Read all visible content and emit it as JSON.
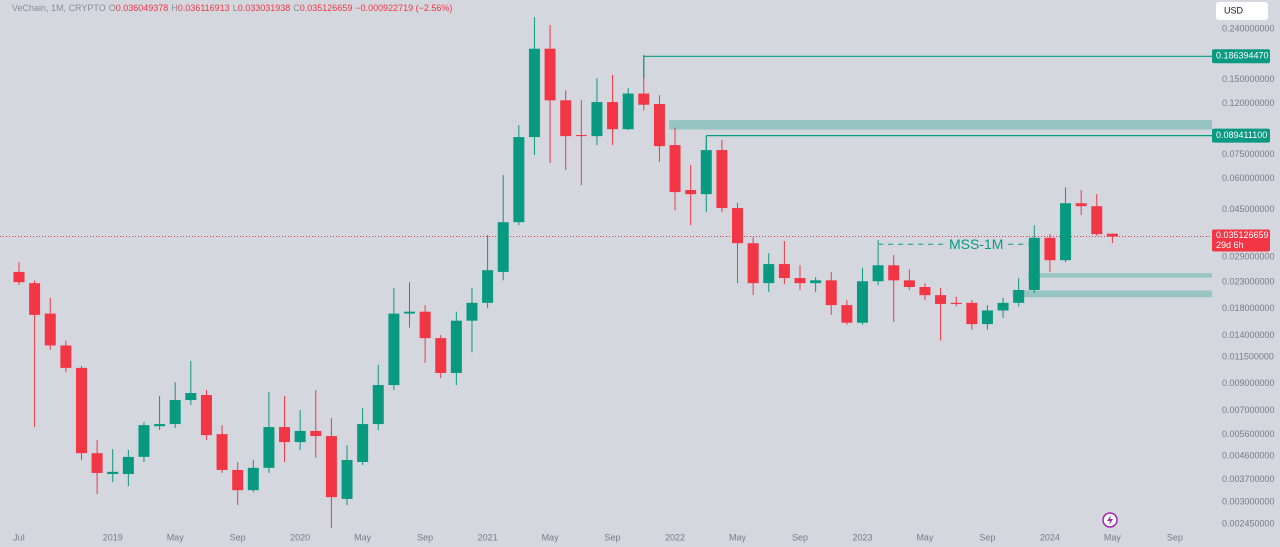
{
  "chart_data": {
    "type": "candlestick",
    "header": {
      "symbol": "VeChain, 1M, CRYPTO",
      "fields": [
        {
          "label": "O",
          "value": "0.036049378"
        },
        {
          "label": "H",
          "value": "0.036116913"
        },
        {
          "label": "L",
          "value": "0.033031938"
        },
        {
          "label": "C",
          "value": "0.035126659"
        }
      ],
      "change": "−0.000922719 (−2.56%)"
    },
    "currency": "USD",
    "up_color": "#089981",
    "down_color": "#f23645",
    "log_scale": true,
    "x": [
      "2018-07",
      "2018-08",
      "2018-09",
      "2018-10",
      "2018-11",
      "2018-12",
      "2019-01",
      "2019-02",
      "2019-03",
      "2019-04",
      "2019-05",
      "2019-06",
      "2019-07",
      "2019-08",
      "2019-09",
      "2019-10",
      "2019-11",
      "2019-12",
      "2020-01",
      "2020-02",
      "2020-03",
      "2020-04",
      "2020-05",
      "2020-06",
      "2020-07",
      "2020-08",
      "2020-09",
      "2020-10",
      "2020-11",
      "2020-12",
      "2021-01",
      "2021-02",
      "2021-03",
      "2021-04",
      "2021-05",
      "2021-06",
      "2021-07",
      "2021-08",
      "2021-09",
      "2021-10",
      "2021-11",
      "2021-12",
      "2022-01",
      "2022-02",
      "2022-03",
      "2022-04",
      "2022-05",
      "2022-06",
      "2022-07",
      "2022-08",
      "2022-09",
      "2022-10",
      "2022-11",
      "2022-12",
      "2023-01",
      "2023-02",
      "2023-03",
      "2023-04",
      "2023-05",
      "2023-06",
      "2023-07",
      "2023-08",
      "2023-09",
      "2023-10",
      "2023-11",
      "2023-12",
      "2024-01",
      "2024-02",
      "2024-03",
      "2024-04",
      "2024-05"
    ],
    "open": [
      0.0253,
      0.0228,
      0.0172,
      0.0128,
      0.0104,
      0.00472,
      0.00389,
      0.00389,
      0.00456,
      0.00606,
      0.00618,
      0.00772,
      0.00809,
      0.00563,
      0.00404,
      0.00335,
      0.00412,
      0.00601,
      0.00523,
      0.0058,
      0.00553,
      0.00309,
      0.00435,
      0.00618,
      0.00887,
      0.0172,
      0.0175,
      0.0137,
      0.00992,
      0.0161,
      0.019,
      0.0253,
      0.0401,
      0.0882,
      0.2,
      0.124,
      0.0899,
      0.089,
      0.122,
      0.0949,
      0.132,
      0.1198,
      0.0819,
      0.054,
      0.052,
      0.0782,
      0.0457,
      0.033,
      0.0228,
      0.0272,
      0.0239,
      0.0228,
      0.0234,
      0.0186,
      0.0158,
      0.0232,
      0.0269,
      0.0234,
      0.022,
      0.0204,
      0.019,
      0.019,
      0.0156,
      0.0177,
      0.019,
      0.0214,
      0.0347,
      0.0282,
      0.0478,
      0.0465,
      0.036049378
    ],
    "high": [
      0.0277,
      0.0234,
      0.0199,
      0.0134,
      0.0106,
      0.00533,
      0.0049,
      0.00486,
      0.00629,
      0.00801,
      0.00911,
      0.0111,
      0.00847,
      0.00612,
      0.00435,
      0.00443,
      0.00832,
      0.00801,
      0.00704,
      0.00847,
      0.00653,
      0.00509,
      0.00717,
      0.0107,
      0.0218,
      0.023,
      0.0186,
      0.0141,
      0.0175,
      0.0218,
      0.0356,
      0.062,
      0.0986,
      0.268,
      0.249,
      0.136,
      0.124,
      0.152,
      0.157,
      0.139,
      0.189,
      0.13,
      0.096,
      0.0681,
      0.0819,
      0.0858,
      0.048,
      0.0349,
      0.0301,
      0.0337,
      0.0269,
      0.0241,
      0.0253,
      0.0195,
      0.0262,
      0.0324,
      0.0296,
      0.0259,
      0.0228,
      0.0218,
      0.0201,
      0.0195,
      0.0186,
      0.0199,
      0.0239,
      0.039,
      0.0359,
      0.0554,
      0.054,
      0.052,
      0.036116913
    ],
    "low": [
      0.0224,
      0.00601,
      0.0123,
      0.01,
      0.00443,
      0.00323,
      0.00361,
      0.00348,
      0.00435,
      0.00585,
      0.00596,
      0.00737,
      0.00533,
      0.00393,
      0.00292,
      0.00329,
      0.00393,
      0.00435,
      0.00486,
      0.00452,
      0.00236,
      0.00292,
      0.00423,
      0.00585,
      0.00847,
      0.0151,
      0.0109,
      0.00946,
      0.00887,
      0.012,
      0.0181,
      0.0234,
      0.039,
      0.0747,
      0.0694,
      0.065,
      0.0565,
      0.0819,
      0.0819,
      0.0941,
      0.113,
      0.07,
      0.0448,
      0.039,
      0.044,
      0.044,
      0.0228,
      0.0204,
      0.021,
      0.0226,
      0.0214,
      0.021,
      0.017,
      0.0155,
      0.0155,
      0.0224,
      0.0159,
      0.0214,
      0.0195,
      0.0134,
      0.0184,
      0.0148,
      0.0148,
      0.0165,
      0.0184,
      0.0208,
      0.0253,
      0.0277,
      0.0428,
      0.0353,
      0.033031938
    ],
    "close": [
      0.023,
      0.017,
      0.0128,
      0.0104,
      0.00472,
      0.00393,
      0.00397,
      0.00456,
      0.00612,
      0.00618,
      0.00772,
      0.00824,
      0.00558,
      0.00404,
      0.00335,
      0.00412,
      0.00601,
      0.00523,
      0.0058,
      0.00553,
      0.00314,
      0.00443,
      0.00618,
      0.00887,
      0.0172,
      0.0175,
      0.0137,
      0.00992,
      0.0161,
      0.019,
      0.0257,
      0.0401,
      0.0882,
      0.2,
      0.124,
      0.089,
      0.089,
      0.122,
      0.0949,
      0.132,
      0.119,
      0.0811,
      0.053,
      0.052,
      0.0782,
      0.0457,
      0.033,
      0.0228,
      0.0272,
      0.0239,
      0.0228,
      0.0234,
      0.0186,
      0.0158,
      0.0232,
      0.0269,
      0.0234,
      0.022,
      0.0204,
      0.0188,
      0.0188,
      0.0156,
      0.0177,
      0.019,
      0.0214,
      0.0347,
      0.0282,
      0.0478,
      0.0465,
      0.0359,
      0.035126659
    ],
    "ylim": [
      0.00236,
      0.314
    ],
    "yticks": [
      {
        "value": 0.24,
        "label": "0.240000000"
      },
      {
        "value": 0.15,
        "label": "0.150000000"
      },
      {
        "value": 0.12,
        "label": "0.120000000"
      },
      {
        "value": 0.075,
        "label": "0.075000000"
      },
      {
        "value": 0.06,
        "label": "0.060000000"
      },
      {
        "value": 0.045,
        "label": "0.045000000"
      },
      {
        "value": 0.029,
        "label": "0.029000000"
      },
      {
        "value": 0.023,
        "label": "0.023000000"
      },
      {
        "value": 0.018,
        "label": "0.018000000"
      },
      {
        "value": 0.014,
        "label": "0.014000000"
      },
      {
        "value": 0.0115,
        "label": "0.011500000"
      },
      {
        "value": 0.009,
        "label": "0.009000000"
      },
      {
        "value": 0.007,
        "label": "0.007000000"
      },
      {
        "value": 0.0056,
        "label": "0.005600000"
      },
      {
        "value": 0.0046,
        "label": "0.004600000"
      },
      {
        "value": 0.0037,
        "label": "0.003700000"
      },
      {
        "value": 0.003,
        "label": "0.003000000"
      },
      {
        "value": 0.00245,
        "label": "0.002450000"
      }
    ],
    "xticks": [
      {
        "value": "2018-07",
        "label": "Jul"
      },
      {
        "value": "2019-01",
        "label": "2019"
      },
      {
        "value": "2019-05",
        "label": "May"
      },
      {
        "value": "2019-09",
        "label": "Sep"
      },
      {
        "value": "2020-01",
        "label": "2020"
      },
      {
        "value": "2020-05",
        "label": "May"
      },
      {
        "value": "2020-09",
        "label": "Sep"
      },
      {
        "value": "2021-01",
        "label": "2021"
      },
      {
        "value": "2021-05",
        "label": "May"
      },
      {
        "value": "2021-09",
        "label": "Sep"
      },
      {
        "value": "2022-01",
        "label": "2022"
      },
      {
        "value": "2022-05",
        "label": "May"
      },
      {
        "value": "2022-09",
        "label": "Sep"
      },
      {
        "value": "2023-01",
        "label": "2023"
      },
      {
        "value": "2023-05",
        "label": "May"
      },
      {
        "value": "2023-09",
        "label": "Sep"
      },
      {
        "value": "2024-01",
        "label": "2024"
      },
      {
        "value": "2024-05",
        "label": "May"
      },
      {
        "value": "2024-09",
        "label": "Sep"
      }
    ],
    "levels": [
      {
        "value": 0.18639447,
        "label": "0.186394470",
        "from": "2021-11"
      },
      {
        "value": 0.0894111,
        "label": "0.089411100",
        "from": "2022-03"
      }
    ],
    "zones": [
      {
        "from": "2022-01",
        "top": 0.1033,
        "bottom": 0.0946
      },
      {
        "from": "2023-12",
        "top": 0.025,
        "bottom": 0.024
      },
      {
        "from": "2023-11",
        "top": 0.0213,
        "bottom": 0.02
      }
    ],
    "mss": {
      "label": "MSS-1M",
      "value": 0.0327,
      "from": "2023-02",
      "to": "2023-12"
    },
    "countdown": "29d 6h"
  }
}
